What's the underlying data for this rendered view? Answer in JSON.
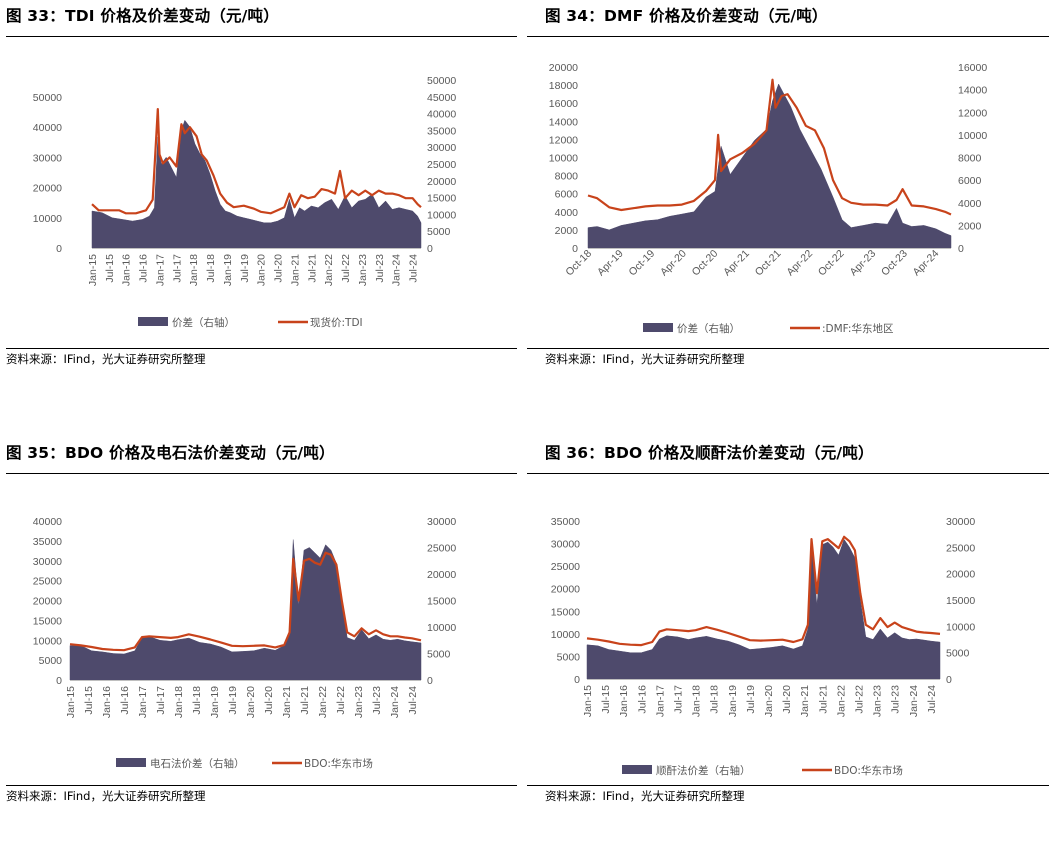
{
  "colors": {
    "area": "#4e4a6c",
    "line": "#c8431b",
    "axis": "#bfbfbf",
    "text": "#595959"
  },
  "chart_data": [
    {
      "type": "area",
      "title": "图 33：TDI 价格及价差变动（元/吨）",
      "source": "资料来源：IFind，光大证券研究所整理",
      "xlabels": [
        "Jan-15",
        "Jul-15",
        "Jan-16",
        "Jul-16",
        "Jan-17",
        "Jul-17",
        "Jan-18",
        "Jul-18",
        "Jan-19",
        "Jul-19",
        "Jan-20",
        "Jul-20",
        "Jan-21",
        "Jul-21",
        "Jan-22",
        "Jul-22",
        "Jan-23",
        "Jul-23",
        "Jan-24",
        "Jul-24"
      ],
      "x_start": 2015.0,
      "x_end": 2024.75,
      "left_ticks": [
        0,
        10000,
        20000,
        30000,
        40000,
        50000
      ],
      "right_ticks": [
        0,
        5000,
        10000,
        15000,
        20000,
        25000,
        30000,
        35000,
        40000,
        45000,
        50000
      ],
      "ylim_left": [
        0,
        50000
      ],
      "ylim_right": [
        0,
        50000
      ],
      "series": [
        {
          "name": "价差（右轴）",
          "kind": "area",
          "axis": "right",
          "x": [
            2015.0,
            2015.3,
            2015.6,
            2015.9,
            2016.2,
            2016.5,
            2016.7,
            2016.85,
            2016.95,
            2017.05,
            2017.2,
            2017.35,
            2017.5,
            2017.65,
            2017.75,
            2017.9,
            2018.05,
            2018.2,
            2018.35,
            2018.5,
            2018.65,
            2018.8,
            2018.95,
            2019.1,
            2019.3,
            2019.5,
            2019.7,
            2019.9,
            2020.1,
            2020.3,
            2020.5,
            2020.7,
            2020.85,
            2021.0,
            2021.15,
            2021.3,
            2021.5,
            2021.7,
            2021.9,
            2022.1,
            2022.3,
            2022.5,
            2022.7,
            2022.9,
            2023.1,
            2023.3,
            2023.5,
            2023.7,
            2023.9,
            2024.1,
            2024.3,
            2024.5,
            2024.65,
            2024.75
          ],
          "y": [
            11000,
            10500,
            9000,
            8500,
            8000,
            8500,
            9500,
            12000,
            33000,
            25000,
            27000,
            24000,
            21000,
            35000,
            38000,
            36000,
            31000,
            28000,
            26000,
            22000,
            17000,
            13000,
            11000,
            10500,
            9500,
            9000,
            8500,
            8000,
            7500,
            7500,
            8000,
            9000,
            14500,
            9000,
            12000,
            11000,
            12500,
            12000,
            13500,
            14500,
            11500,
            15500,
            12000,
            14000,
            14500,
            16000,
            12000,
            14000,
            11500,
            12000,
            11500,
            11000,
            9500,
            7500
          ]
        },
        {
          "name": "现货价:TDI",
          "kind": "line",
          "axis": "left",
          "x": [
            2015.0,
            2015.2,
            2015.5,
            2015.8,
            2016.0,
            2016.3,
            2016.6,
            2016.8,
            2016.95,
            2017.0,
            2017.1,
            2017.3,
            2017.5,
            2017.65,
            2017.75,
            2017.9,
            2018.1,
            2018.25,
            2018.4,
            2018.6,
            2018.8,
            2019.0,
            2019.2,
            2019.5,
            2019.8,
            2020.0,
            2020.3,
            2020.5,
            2020.7,
            2020.85,
            2021.0,
            2021.2,
            2021.4,
            2021.6,
            2021.8,
            2022.0,
            2022.2,
            2022.35,
            2022.5,
            2022.7,
            2022.9,
            2023.1,
            2023.3,
            2023.5,
            2023.7,
            2023.9,
            2024.1,
            2024.3,
            2024.5,
            2024.65,
            2024.75
          ],
          "y": [
            14500,
            12500,
            12500,
            12500,
            11500,
            11500,
            12500,
            16000,
            46000,
            31000,
            28000,
            30000,
            27000,
            41000,
            38000,
            40000,
            37000,
            31000,
            29000,
            24000,
            18000,
            15000,
            13500,
            14000,
            13000,
            12000,
            11500,
            12500,
            13500,
            18000,
            13500,
            17500,
            16500,
            17000,
            19500,
            19000,
            18000,
            25500,
            16500,
            19000,
            17500,
            19000,
            17500,
            19000,
            18000,
            18000,
            17500,
            16500,
            16500,
            14500,
            13500
          ]
        }
      ],
      "legend": [
        "价差（右轴）",
        "现货价:TDI"
      ]
    },
    {
      "type": "area",
      "title": "图 34：DMF 价格及价差变动（元/吨）",
      "source": "资料来源：IFind，光大证券研究所整理",
      "xlabels": [
        "Oct-18",
        "Apr-19",
        "Oct-19",
        "Apr-20",
        "Oct-20",
        "Apr-21",
        "Oct-21",
        "Apr-22",
        "Oct-22",
        "Apr-23",
        "Oct-23",
        "Apr-24"
      ],
      "x_start": 2018.75,
      "x_end": 2024.75,
      "left_ticks": [
        0,
        2000,
        4000,
        6000,
        8000,
        10000,
        12000,
        14000,
        16000,
        18000,
        20000
      ],
      "right_ticks": [
        0,
        2000,
        4000,
        6000,
        8000,
        10000,
        12000,
        14000,
        16000
      ],
      "ylim_left": [
        0,
        20000
      ],
      "ylim_right": [
        0,
        16000
      ],
      "series": [
        {
          "name": "价差（右轴）",
          "kind": "area",
          "axis": "right",
          "x": [
            2018.75,
            2018.9,
            2019.1,
            2019.3,
            2019.5,
            2019.7,
            2019.9,
            2020.1,
            2020.3,
            2020.5,
            2020.7,
            2020.85,
            2020.95,
            2021.1,
            2021.3,
            2021.5,
            2021.7,
            2021.8,
            2021.9,
            2022.0,
            2022.1,
            2022.25,
            2022.4,
            2022.6,
            2022.8,
            2022.95,
            2023.1,
            2023.3,
            2023.5,
            2023.7,
            2023.85,
            2023.95,
            2024.1,
            2024.3,
            2024.5,
            2024.65,
            2024.75
          ],
          "y": [
            1800,
            1900,
            1600,
            2000,
            2200,
            2400,
            2500,
            2800,
            3000,
            3200,
            4500,
            5000,
            9000,
            6500,
            8000,
            9500,
            10500,
            13000,
            14500,
            13500,
            12500,
            10500,
            9000,
            7000,
            4500,
            2500,
            1800,
            2000,
            2200,
            2100,
            3500,
            2200,
            1900,
            2000,
            1700,
            1300,
            1100
          ]
        },
        {
          "name": ":DMF:华东地区",
          "kind": "line",
          "axis": "left",
          "x": [
            2018.75,
            2018.9,
            2019.1,
            2019.3,
            2019.5,
            2019.7,
            2019.9,
            2020.1,
            2020.3,
            2020.5,
            2020.7,
            2020.85,
            2020.9,
            2020.95,
            2021.1,
            2021.3,
            2021.5,
            2021.7,
            2021.8,
            2021.85,
            2021.95,
            2022.05,
            2022.2,
            2022.35,
            2022.5,
            2022.65,
            2022.8,
            2022.95,
            2023.1,
            2023.3,
            2023.5,
            2023.7,
            2023.85,
            2023.95,
            2024.1,
            2024.3,
            2024.5,
            2024.65,
            2024.75
          ],
          "y": [
            5800,
            5500,
            4500,
            4200,
            4400,
            4600,
            4700,
            4700,
            4800,
            5200,
            6300,
            7500,
            12500,
            8500,
            9800,
            10500,
            11500,
            13000,
            18600,
            15500,
            16800,
            17000,
            15500,
            13500,
            13000,
            11000,
            7500,
            5500,
            5000,
            4800,
            4800,
            4700,
            5300,
            6500,
            4700,
            4600,
            4300,
            4000,
            3700
          ]
        }
      ],
      "legend": [
        "价差（右轴）",
        ":DMF:华东地区"
      ]
    },
    {
      "type": "area",
      "title": "图 35：BDO 价格及电石法价差变动（元/吨）",
      "source": "资料来源：IFind，光大证券研究所整理",
      "xlabels": [
        "Jan-15",
        "Jul-15",
        "Jan-16",
        "Jul-16",
        "Jan-17",
        "Jul-17",
        "Jan-18",
        "Jul-18",
        "Jan-19",
        "Jul-19",
        "Jan-20",
        "Jul-20",
        "Jan-21",
        "Jul-21",
        "Jan-22",
        "Jul-22",
        "Jan-23",
        "Jul-23",
        "Jan-24",
        "Jul-24"
      ],
      "x_start": 2015.0,
      "x_end": 2024.75,
      "left_ticks": [
        0,
        5000,
        10000,
        15000,
        20000,
        25000,
        30000,
        35000,
        40000
      ],
      "right_ticks": [
        0,
        5000,
        10000,
        15000,
        20000,
        25000,
        30000
      ],
      "ylim_left": [
        0,
        40000
      ],
      "ylim_right": [
        0,
        30000
      ],
      "series": [
        {
          "name": "电石法价差（右轴）",
          "kind": "area",
          "axis": "right",
          "x": [
            2015.0,
            2015.3,
            2015.6,
            2015.9,
            2016.2,
            2016.5,
            2016.8,
            2017.0,
            2017.2,
            2017.5,
            2017.8,
            2018.0,
            2018.3,
            2018.6,
            2018.9,
            2019.2,
            2019.5,
            2019.8,
            2020.1,
            2020.4,
            2020.7,
            2020.95,
            2021.1,
            2021.2,
            2021.35,
            2021.5,
            2021.65,
            2021.8,
            2021.95,
            2022.1,
            2022.25,
            2022.4,
            2022.55,
            2022.7,
            2022.9,
            2023.1,
            2023.3,
            2023.5,
            2023.7,
            2023.9,
            2024.1,
            2024.3,
            2024.5,
            2024.75
          ],
          "y": [
            6500,
            6500,
            5500,
            5300,
            5000,
            4900,
            5500,
            8000,
            8200,
            7500,
            7300,
            7600,
            7900,
            7100,
            6800,
            6200,
            5300,
            5400,
            5500,
            6000,
            5600,
            6500,
            9000,
            26500,
            14000,
            24500,
            25000,
            24000,
            23000,
            25500,
            24500,
            22000,
            15000,
            8000,
            7500,
            9500,
            7800,
            8500,
            7700,
            7500,
            7700,
            7400,
            7200,
            7000
          ]
        },
        {
          "name": "BDO:华东市场",
          "kind": "line",
          "axis": "left",
          "x": [
            2015.0,
            2015.3,
            2015.6,
            2015.9,
            2016.2,
            2016.5,
            2016.8,
            2017.0,
            2017.2,
            2017.5,
            2017.8,
            2018.0,
            2018.3,
            2018.6,
            2018.9,
            2019.2,
            2019.5,
            2019.8,
            2020.1,
            2020.4,
            2020.7,
            2020.95,
            2021.1,
            2021.2,
            2021.35,
            2021.5,
            2021.65,
            2021.8,
            2021.95,
            2022.1,
            2022.25,
            2022.4,
            2022.55,
            2022.7,
            2022.9,
            2023.1,
            2023.3,
            2023.5,
            2023.7,
            2023.9,
            2024.1,
            2024.3,
            2024.5,
            2024.75
          ],
          "y": [
            9000,
            8700,
            8300,
            7800,
            7600,
            7500,
            8200,
            10800,
            11000,
            10800,
            10600,
            10800,
            11500,
            10900,
            10200,
            9400,
            8600,
            8500,
            8600,
            8700,
            8200,
            8800,
            12000,
            30500,
            20000,
            30000,
            30500,
            29500,
            29000,
            32000,
            31500,
            29000,
            20000,
            12000,
            11000,
            13000,
            11500,
            12500,
            11500,
            11000,
            11000,
            10700,
            10500,
            10000
          ]
        }
      ],
      "legend": [
        "电石法价差（右轴）",
        "BDO:华东市场"
      ]
    },
    {
      "type": "area",
      "title": "图 36：BDO 价格及顺酐法价差变动（元/吨）",
      "source": "资料来源：IFind，光大证券研究所整理",
      "xlabels": [
        "Jan-15",
        "Jul-15",
        "Jan-16",
        "Jul-16",
        "Jan-17",
        "Jul-17",
        "Jan-18",
        "Jul-18",
        "Jan-19",
        "Jul-19",
        "Jan-20",
        "Jul-20",
        "Jan-21",
        "Jul-21",
        "Jan-22",
        "Jul-22",
        "Jan-23",
        "Jul-23",
        "Jan-24",
        "Jul-24"
      ],
      "x_start": 2015.0,
      "x_end": 2024.75,
      "left_ticks": [
        0,
        5000,
        10000,
        15000,
        20000,
        25000,
        30000,
        35000
      ],
      "right_ticks": [
        0,
        5000,
        10000,
        15000,
        20000,
        25000,
        30000
      ],
      "ylim_left": [
        0,
        35000
      ],
      "ylim_right": [
        0,
        30000
      ],
      "series": [
        {
          "name": "顺酐法价差（右轴）",
          "kind": "area",
          "axis": "right",
          "x": [
            2015.0,
            2015.3,
            2015.6,
            2015.9,
            2016.2,
            2016.5,
            2016.8,
            2017.0,
            2017.2,
            2017.5,
            2017.8,
            2018.0,
            2018.3,
            2018.6,
            2018.9,
            2019.2,
            2019.5,
            2019.8,
            2020.1,
            2020.4,
            2020.7,
            2020.95,
            2021.1,
            2021.2,
            2021.35,
            2021.5,
            2021.65,
            2021.8,
            2021.95,
            2022.1,
            2022.25,
            2022.4,
            2022.55,
            2022.7,
            2022.9,
            2023.1,
            2023.3,
            2023.5,
            2023.7,
            2023.9,
            2024.1,
            2024.3,
            2024.5,
            2024.75
          ],
          "y": [
            6500,
            6300,
            5600,
            5300,
            5000,
            5000,
            5600,
            7600,
            8200,
            8000,
            7500,
            7800,
            8100,
            7600,
            7200,
            6500,
            5600,
            5800,
            6000,
            6300,
            5700,
            6300,
            9500,
            26500,
            14000,
            25500,
            26000,
            25000,
            23500,
            26500,
            25000,
            23000,
            15000,
            8000,
            7500,
            9500,
            7800,
            8800,
            7800,
            7500,
            7600,
            7400,
            7200,
            7000
          ]
        },
        {
          "name": "BDO:华东市场",
          "kind": "line",
          "axis": "left",
          "x": [
            2015.0,
            2015.3,
            2015.6,
            2015.9,
            2016.2,
            2016.5,
            2016.8,
            2017.0,
            2017.2,
            2017.5,
            2017.8,
            2018.0,
            2018.3,
            2018.6,
            2018.9,
            2019.2,
            2019.5,
            2019.8,
            2020.1,
            2020.4,
            2020.7,
            2020.95,
            2021.1,
            2021.2,
            2021.35,
            2021.5,
            2021.65,
            2021.8,
            2021.95,
            2022.1,
            2022.25,
            2022.4,
            2022.55,
            2022.7,
            2022.9,
            2023.1,
            2023.3,
            2023.5,
            2023.7,
            2023.9,
            2024.1,
            2024.3,
            2024.5,
            2024.75
          ],
          "y": [
            9000,
            8700,
            8300,
            7800,
            7600,
            7500,
            8200,
            10500,
            11000,
            10800,
            10600,
            10800,
            11500,
            10900,
            10200,
            9400,
            8600,
            8500,
            8600,
            8700,
            8200,
            8800,
            12000,
            31000,
            19000,
            30500,
            31000,
            30000,
            29000,
            31500,
            30500,
            28500,
            19000,
            12000,
            11000,
            13500,
            11500,
            12500,
            11500,
            11000,
            10500,
            10300,
            10200,
            10000
          ]
        }
      ],
      "legend": [
        "顺酐法价差（右轴）",
        "BDO:华东市场"
      ]
    }
  ]
}
